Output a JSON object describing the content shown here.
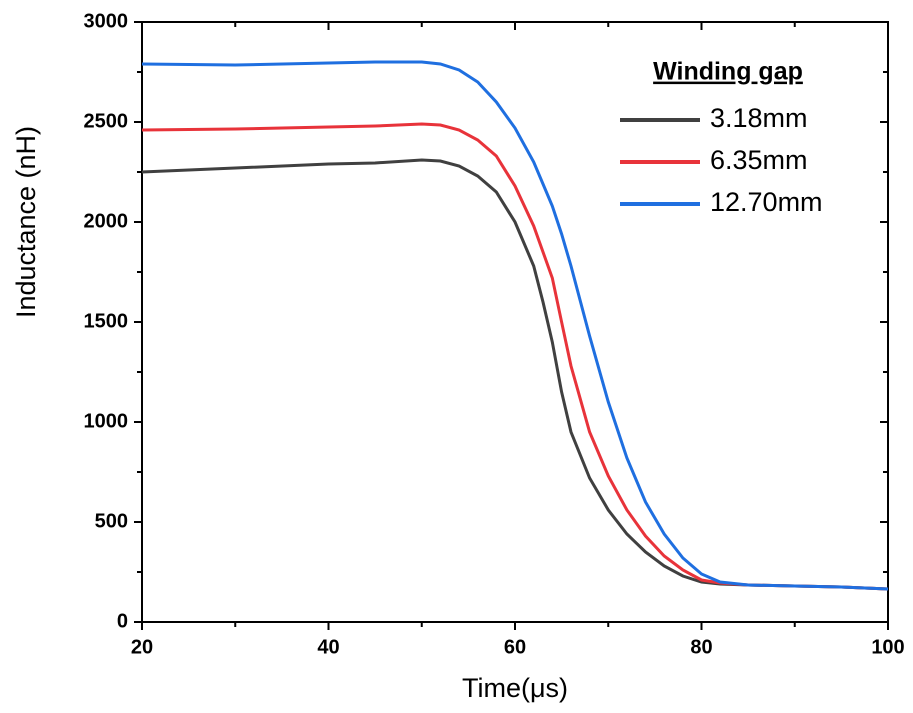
{
  "chart_data": {
    "type": "line",
    "x_label": "Time(μs)",
    "y_label": "Inductance (nH)",
    "legend_title": "Winding gap",
    "legend_position": "upper right",
    "x": [
      20,
      30,
      40,
      45,
      50,
      52,
      54,
      56,
      58,
      60,
      62,
      63,
      64,
      65,
      66,
      68,
      70,
      72,
      74,
      76,
      78,
      80,
      82,
      85,
      90,
      95,
      100
    ],
    "series": [
      {
        "name": "3.18mm",
        "color": "#404040",
        "values": [
          2250,
          2270,
          2290,
          2295,
          2310,
          2305,
          2280,
          2230,
          2150,
          2000,
          1780,
          1600,
          1400,
          1150,
          950,
          720,
          560,
          440,
          350,
          280,
          230,
          200,
          190,
          185,
          180,
          175,
          165
        ]
      },
      {
        "name": "6.35mm",
        "color": "#e8333a",
        "values": [
          2460,
          2465,
          2475,
          2480,
          2490,
          2485,
          2460,
          2410,
          2330,
          2180,
          1980,
          1850,
          1720,
          1500,
          1280,
          950,
          730,
          560,
          430,
          330,
          260,
          210,
          195,
          185,
          180,
          175,
          165
        ]
      },
      {
        "name": "12.70mm",
        "color": "#1f6fe0",
        "values": [
          2790,
          2785,
          2795,
          2800,
          2800,
          2790,
          2760,
          2700,
          2600,
          2470,
          2300,
          2190,
          2080,
          1940,
          1780,
          1430,
          1100,
          820,
          600,
          440,
          320,
          240,
          200,
          185,
          180,
          175,
          165
        ]
      }
    ],
    "xlim": [
      20,
      100
    ],
    "xticks": [
      20,
      40,
      60,
      80,
      100
    ],
    "ylim": [
      0,
      3000
    ],
    "yticks": [
      0,
      500,
      1000,
      1500,
      2000,
      2500,
      3000
    ]
  }
}
